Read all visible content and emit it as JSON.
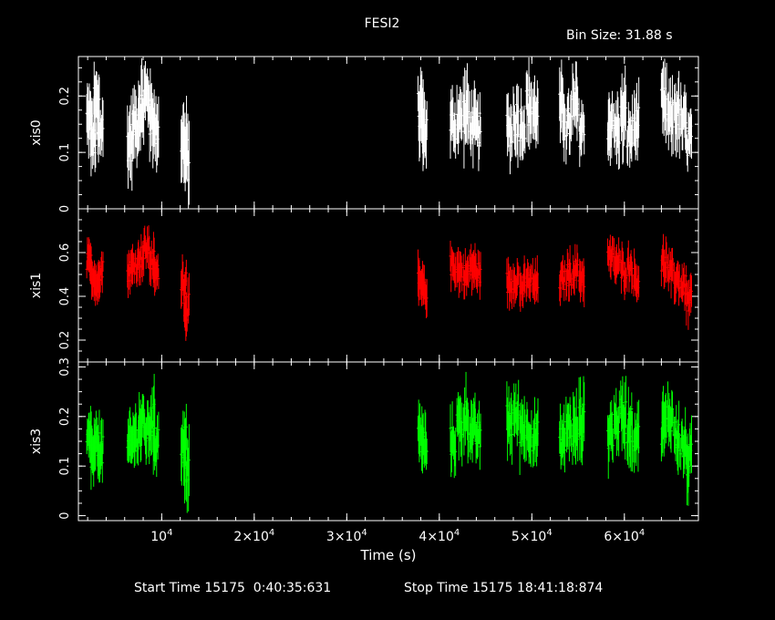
{
  "header": {
    "title": "FESI2",
    "bin_size": "Bin Size: 31.88 s"
  },
  "footer": {
    "start_label": "Start Time 15175  0:40:35:631",
    "stop_label": "Stop Time 15175 18:41:18:874"
  },
  "colors": {
    "xis0": "#ffffff",
    "xis1": "#ff0000",
    "xis3": "#00ff00",
    "axes": "#ffffff",
    "background": "#000000"
  },
  "chart_data": {
    "type": "scatter",
    "title": "FESI2",
    "xlabel": "Time (s)",
    "xlim": [
      1000,
      68000
    ],
    "x_ticks": [
      10000,
      20000,
      30000,
      40000,
      50000,
      60000
    ],
    "x_tick_labels": [
      "10^4",
      "2×10^4",
      "3×10^4",
      "4×10^4",
      "5×10^4",
      "6×10^4"
    ],
    "panels": [
      {
        "name": "xis0",
        "ylabel": "xis0",
        "color": "#ffffff",
        "ylim": [
          0,
          0.27
        ],
        "y_ticks": [
          0,
          0.1,
          0.2
        ],
        "y_tick_labels": [
          "0",
          "0.1",
          "0.2"
        ],
        "segments": [
          {
            "t": [
              2200,
              2600,
              3000,
              3400
            ],
            "y": [
              0.16,
              0.12,
              0.18,
              0.14
            ],
            "err": [
              0.05,
              0.05,
              0.06,
              0.05
            ]
          },
          {
            "t": [
              6600,
              7200,
              7800,
              8400,
              9000,
              9400
            ],
            "y": [
              0.12,
              0.15,
              0.18,
              0.2,
              0.16,
              0.14
            ],
            "err": [
              0.06,
              0.05,
              0.06,
              0.05,
              0.06,
              0.05
            ]
          },
          {
            "t": [
              12400,
              12700
            ],
            "y": [
              0.12,
              0.09
            ],
            "err": [
              0.06,
              0.07
            ]
          },
          {
            "t": [
              38000,
              38400
            ],
            "y": [
              0.17,
              0.14
            ],
            "err": [
              0.06,
              0.05
            ]
          },
          {
            "t": [
              41500,
              42200,
              42900,
              43600,
              44200
            ],
            "y": [
              0.15,
              0.16,
              0.17,
              0.15,
              0.14
            ],
            "err": [
              0.05,
              0.05,
              0.06,
              0.05,
              0.05
            ]
          },
          {
            "t": [
              47600,
              48300,
              49000,
              49700,
              50400
            ],
            "y": [
              0.14,
              0.16,
              0.15,
              0.18,
              0.17
            ],
            "err": [
              0.05,
              0.06,
              0.05,
              0.06,
              0.05
            ]
          },
          {
            "t": [
              53300,
              54000,
              54700,
              55400
            ],
            "y": [
              0.17,
              0.15,
              0.18,
              0.14
            ],
            "err": [
              0.06,
              0.05,
              0.06,
              0.05
            ]
          },
          {
            "t": [
              58500,
              59200,
              59900,
              60600,
              61300
            ],
            "y": [
              0.15,
              0.14,
              0.16,
              0.13,
              0.15
            ],
            "err": [
              0.05,
              0.05,
              0.06,
              0.05,
              0.05
            ]
          },
          {
            "t": [
              64300,
              65000,
              65700,
              66400,
              67000
            ],
            "y": [
              0.18,
              0.16,
              0.17,
              0.15,
              0.12
            ],
            "err": [
              0.06,
              0.05,
              0.06,
              0.05,
              0.05
            ]
          }
        ]
      },
      {
        "name": "xis1",
        "ylabel": "xis1",
        "color": "#ff0000",
        "ylim": [
          0.1,
          0.8
        ],
        "y_ticks": [
          0.2,
          0.4,
          0.6
        ],
        "y_tick_labels": [
          "0.2",
          "0.4",
          "0.6"
        ],
        "segments": [
          {
            "t": [
              2200,
              2600,
              3000,
              3400
            ],
            "y": [
              0.55,
              0.5,
              0.46,
              0.52
            ],
            "err": [
              0.08,
              0.08,
              0.09,
              0.08
            ]
          },
          {
            "t": [
              6600,
              7200,
              7800,
              8400,
              9000,
              9400
            ],
            "y": [
              0.52,
              0.55,
              0.58,
              0.62,
              0.56,
              0.5
            ],
            "err": [
              0.09,
              0.08,
              0.09,
              0.08,
              0.09,
              0.08
            ]
          },
          {
            "t": [
              12400,
              12700
            ],
            "y": [
              0.48,
              0.35
            ],
            "err": [
              0.09,
              0.1
            ]
          },
          {
            "t": [
              38000,
              38400
            ],
            "y": [
              0.45,
              0.42
            ],
            "err": [
              0.1,
              0.08
            ]
          },
          {
            "t": [
              41500,
              42200,
              42900,
              43600,
              44200
            ],
            "y": [
              0.54,
              0.52,
              0.5,
              0.53,
              0.51
            ],
            "err": [
              0.08,
              0.09,
              0.08,
              0.09,
              0.08
            ]
          },
          {
            "t": [
              47600,
              48300,
              49000,
              49700,
              50400
            ],
            "y": [
              0.46,
              0.48,
              0.44,
              0.47,
              0.45
            ],
            "err": [
              0.09,
              0.08,
              0.09,
              0.08,
              0.09
            ]
          },
          {
            "t": [
              53300,
              54000,
              54700,
              55400
            ],
            "y": [
              0.47,
              0.5,
              0.52,
              0.49
            ],
            "err": [
              0.08,
              0.09,
              0.08,
              0.09
            ]
          },
          {
            "t": [
              58500,
              59200,
              59900,
              60600,
              61300
            ],
            "y": [
              0.57,
              0.55,
              0.52,
              0.54,
              0.48
            ],
            "err": [
              0.09,
              0.08,
              0.09,
              0.08,
              0.09
            ]
          },
          {
            "t": [
              64300,
              65000,
              65700,
              66400,
              67000
            ],
            "y": [
              0.55,
              0.5,
              0.48,
              0.45,
              0.38
            ],
            "err": [
              0.09,
              0.08,
              0.09,
              0.08,
              0.1
            ]
          }
        ]
      },
      {
        "name": "xis3",
        "ylabel": "xis3",
        "color": "#00ff00",
        "ylim": [
          -0.01,
          0.31
        ],
        "y_ticks": [
          0,
          0.1,
          0.2,
          0.3
        ],
        "y_tick_labels": [
          "0",
          "0.1",
          "0.2",
          "0.3"
        ],
        "segments": [
          {
            "t": [
              2200,
              2600,
              3000,
              3400
            ],
            "y": [
              0.15,
              0.12,
              0.14,
              0.13
            ],
            "err": [
              0.05,
              0.05,
              0.05,
              0.05
            ]
          },
          {
            "t": [
              6600,
              7200,
              7800,
              8400,
              9000,
              9400
            ],
            "y": [
              0.14,
              0.16,
              0.18,
              0.17,
              0.19,
              0.15
            ],
            "err": [
              0.05,
              0.05,
              0.06,
              0.05,
              0.06,
              0.05
            ]
          },
          {
            "t": [
              12400,
              12700
            ],
            "y": [
              0.15,
              0.1
            ],
            "err": [
              0.06,
              0.07
            ]
          },
          {
            "t": [
              38000,
              38400
            ],
            "y": [
              0.16,
              0.14
            ],
            "err": [
              0.05,
              0.05
            ]
          },
          {
            "t": [
              41500,
              42200,
              42900,
              43600,
              44200
            ],
            "y": [
              0.15,
              0.18,
              0.2,
              0.17,
              0.16
            ],
            "err": [
              0.05,
              0.06,
              0.06,
              0.05,
              0.05
            ]
          },
          {
            "t": [
              47600,
              48300,
              49000,
              49700,
              50400
            ],
            "y": [
              0.19,
              0.2,
              0.18,
              0.17,
              0.16
            ],
            "err": [
              0.06,
              0.05,
              0.06,
              0.05,
              0.05
            ]
          },
          {
            "t": [
              53300,
              54000,
              54700,
              55400
            ],
            "y": [
              0.15,
              0.18,
              0.17,
              0.19
            ],
            "err": [
              0.05,
              0.05,
              0.06,
              0.06
            ]
          },
          {
            "t": [
              58500,
              59200,
              59900,
              60600,
              61300
            ],
            "y": [
              0.17,
              0.19,
              0.2,
              0.18,
              0.16
            ],
            "err": [
              0.06,
              0.05,
              0.06,
              0.06,
              0.05
            ]
          },
          {
            "t": [
              64300,
              65000,
              65700,
              66400,
              67000
            ],
            "y": [
              0.18,
              0.2,
              0.16,
              0.14,
              0.11
            ],
            "err": [
              0.06,
              0.05,
              0.06,
              0.05,
              0.06
            ]
          }
        ]
      }
    ]
  }
}
